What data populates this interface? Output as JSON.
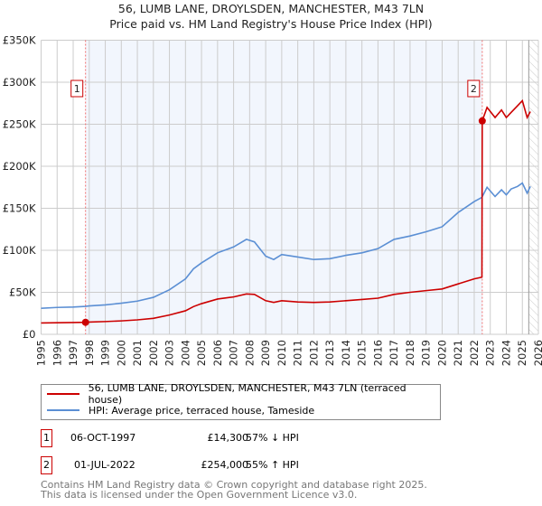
{
  "chart_data": {
    "type": "line",
    "title": "56, LUMB LANE, DROYLSDEN, MANCHESTER, M43 7LN",
    "subtitle": "Price paid vs. HM Land Registry's House Price Index (HPI)",
    "xlim": [
      1995,
      2026
    ],
    "ylim": [
      0,
      350000
    ],
    "x_ticks": [
      "1995",
      "1996",
      "1997",
      "1998",
      "1999",
      "2000",
      "2001",
      "2002",
      "2003",
      "2004",
      "2005",
      "2006",
      "2007",
      "2008",
      "2009",
      "2010",
      "2011",
      "2012",
      "2013",
      "2014",
      "2015",
      "2016",
      "2017",
      "2018",
      "2019",
      "2020",
      "2021",
      "2022",
      "2023",
      "2024",
      "2025",
      "2026"
    ],
    "y_ticks": [
      {
        "v": 0,
        "label": "£0"
      },
      {
        "v": 50000,
        "label": "£50K"
      },
      {
        "v": 100000,
        "label": "£100K"
      },
      {
        "v": 150000,
        "label": "£150K"
      },
      {
        "v": 200000,
        "label": "£200K"
      },
      {
        "v": 250000,
        "label": "£250K"
      },
      {
        "v": 300000,
        "label": "£300K"
      },
      {
        "v": 350000,
        "label": "£350K"
      }
    ],
    "grid": true,
    "shaded_range": [
      1997.77,
      2022.5
    ],
    "future_hatch_from": 2025.4,
    "series": [
      {
        "name": "56, LUMB LANE, DROYLSDEN, MANCHESTER, M43 7LN (terraced house)",
        "color": "#cc0000",
        "x": [
          1995,
          1996,
          1997,
          1997.77,
          1998,
          1999,
          2000,
          2001,
          2002,
          2003,
          2004,
          2004.5,
          2005,
          2006,
          2007,
          2007.8,
          2008.3,
          2009,
          2009.5,
          2010,
          2011,
          2012,
          2013,
          2014,
          2015,
          2016,
          2017,
          2018,
          2019,
          2020,
          2021,
          2022,
          2022.48,
          2022.5,
          2022.8,
          2023.3,
          2023.7,
          2024,
          2024.3,
          2024.7,
          2025,
          2025.3,
          2025.5
        ],
        "y": [
          13500,
          13800,
          14000,
          14300,
          14600,
          15200,
          16000,
          17200,
          19000,
          23000,
          28000,
          33000,
          36500,
          42000,
          44500,
          48000,
          47500,
          40000,
          38000,
          40000,
          38500,
          38000,
          38500,
          40000,
          41500,
          43000,
          47500,
          50000,
          52000,
          54000,
          60000,
          66000,
          68000,
          254000,
          270000,
          258000,
          267000,
          258000,
          264000,
          272000,
          278000,
          258000,
          265000
        ]
      },
      {
        "name": "HPI: Average price, terraced house, Tameside",
        "color": "#5b8fd4",
        "x": [
          1995,
          1996,
          1997,
          1997.77,
          1998,
          1999,
          2000,
          2001,
          2002,
          2003,
          2004,
          2004.5,
          2005,
          2006,
          2007,
          2007.8,
          2008.3,
          2009,
          2009.5,
          2010,
          2011,
          2012,
          2013,
          2014,
          2015,
          2016,
          2017,
          2018,
          2019,
          2020,
          2021,
          2022,
          2022.48,
          2022.8,
          2023.3,
          2023.7,
          2024,
          2024.3,
          2024.7,
          2025,
          2025.3,
          2025.5
        ],
        "y": [
          31000,
          32000,
          32500,
          33300,
          33800,
          35000,
          37000,
          39500,
          44000,
          53000,
          66000,
          78000,
          85000,
          97000,
          104000,
          113000,
          110000,
          93000,
          89000,
          95000,
          92000,
          89000,
          90000,
          94000,
          97000,
          102000,
          113000,
          117000,
          122000,
          128000,
          145000,
          158000,
          163000,
          175000,
          164000,
          172000,
          166000,
          173000,
          176000,
          180000,
          168000,
          176000
        ]
      }
    ],
    "sales": [
      {
        "id": "1",
        "x": 1997.77,
        "y": 14300
      },
      {
        "id": "2",
        "x": 2022.5,
        "y": 254000
      }
    ]
  },
  "header": {
    "title": "56, LUMB LANE, DROYLSDEN, MANCHESTER, M43 7LN",
    "subtitle": "Price paid vs. HM Land Registry's House Price Index (HPI)"
  },
  "legend": {
    "items": [
      {
        "label": "56, LUMB LANE, DROYLSDEN, MANCHESTER, M43 7LN (terraced house)",
        "color": "#cc0000"
      },
      {
        "label": "HPI: Average price, terraced house, Tameside",
        "color": "#5b8fd4"
      }
    ]
  },
  "sales_table": [
    {
      "num": "1",
      "date": "06-OCT-1997",
      "price": "£14,300",
      "hpi": "57% ↓ HPI"
    },
    {
      "num": "2",
      "date": "01-JUL-2022",
      "price": "£254,000",
      "hpi": "55% ↑ HPI"
    }
  ],
  "footer": {
    "line1": "Contains HM Land Registry data © Crown copyright and database right 2025.",
    "line2": "This data is licensed under the Open Government Licence v3.0."
  }
}
